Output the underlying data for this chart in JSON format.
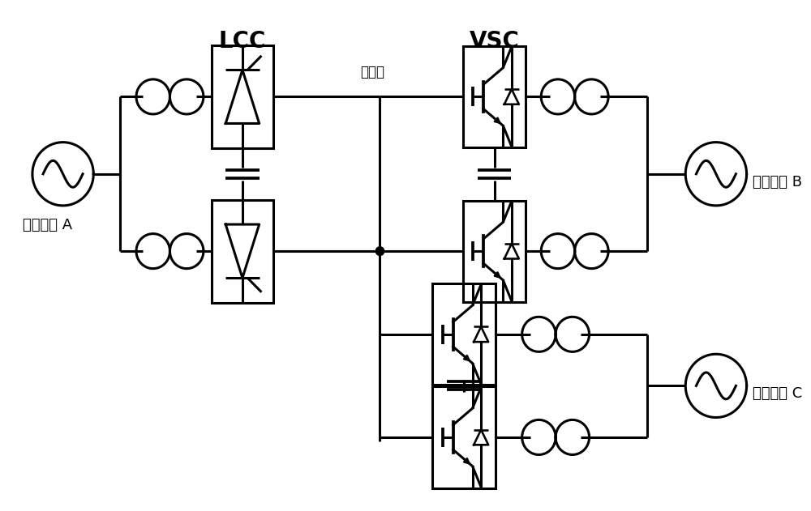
{
  "bg": "#ffffff",
  "lc": "#000000",
  "lw": 2.2,
  "figsize": [
    10.0,
    6.31
  ],
  "lcc_label": "LCC",
  "vsc_label": "VSC",
  "acA_label": "交流电网 A",
  "acB_label": "交流电网 B",
  "acC_label": "交流电网 C",
  "overhead_label": "架空线"
}
